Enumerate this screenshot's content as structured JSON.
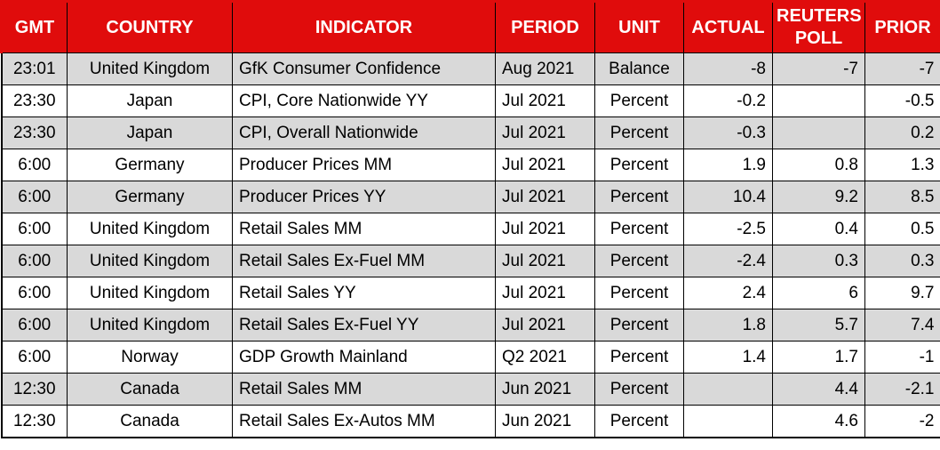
{
  "colors": {
    "header_bg": "#e00c0c",
    "header_text": "#ffffff",
    "row_alt_bg": "#d9d9d9",
    "row_bg": "#ffffff",
    "border": "#000000",
    "text": "#000000"
  },
  "table": {
    "columns": [
      {
        "key": "gmt",
        "label": "GMT"
      },
      {
        "key": "country",
        "label": "COUNTRY"
      },
      {
        "key": "indicator",
        "label": "INDICATOR"
      },
      {
        "key": "period",
        "label": "PERIOD"
      },
      {
        "key": "unit",
        "label": "UNIT"
      },
      {
        "key": "actual",
        "label": "ACTUAL"
      },
      {
        "key": "reuters_poll",
        "label": "REUTERS POLL"
      },
      {
        "key": "prior",
        "label": "PRIOR"
      }
    ],
    "rows": [
      {
        "gmt": "23:01",
        "country": "United Kingdom",
        "indicator": "GfK Consumer Confidence",
        "period": "Aug 2021",
        "unit": "Balance",
        "actual": "-8",
        "reuters_poll": "-7",
        "prior": "-7"
      },
      {
        "gmt": "23:30",
        "country": "Japan",
        "indicator": "CPI, Core Nationwide YY",
        "period": "Jul 2021",
        "unit": "Percent",
        "actual": "-0.2",
        "reuters_poll": "",
        "prior": "-0.5"
      },
      {
        "gmt": "23:30",
        "country": "Japan",
        "indicator": "CPI, Overall Nationwide",
        "period": "Jul 2021",
        "unit": "Percent",
        "actual": "-0.3",
        "reuters_poll": "",
        "prior": "0.2"
      },
      {
        "gmt": "6:00",
        "country": "Germany",
        "indicator": "Producer Prices MM",
        "period": "Jul 2021",
        "unit": "Percent",
        "actual": "1.9",
        "reuters_poll": "0.8",
        "prior": "1.3"
      },
      {
        "gmt": "6:00",
        "country": "Germany",
        "indicator": "Producer Prices YY",
        "period": "Jul 2021",
        "unit": "Percent",
        "actual": "10.4",
        "reuters_poll": "9.2",
        "prior": "8.5"
      },
      {
        "gmt": "6:00",
        "country": "United Kingdom",
        "indicator": "Retail Sales MM",
        "period": "Jul 2021",
        "unit": "Percent",
        "actual": "-2.5",
        "reuters_poll": "0.4",
        "prior": "0.5"
      },
      {
        "gmt": "6:00",
        "country": "United Kingdom",
        "indicator": "Retail Sales Ex-Fuel MM",
        "period": "Jul 2021",
        "unit": "Percent",
        "actual": "-2.4",
        "reuters_poll": "0.3",
        "prior": "0.3"
      },
      {
        "gmt": "6:00",
        "country": "United Kingdom",
        "indicator": "Retail Sales YY",
        "period": "Jul 2021",
        "unit": "Percent",
        "actual": "2.4",
        "reuters_poll": "6",
        "prior": "9.7"
      },
      {
        "gmt": "6:00",
        "country": "United Kingdom",
        "indicator": "Retail Sales Ex-Fuel YY",
        "period": "Jul 2021",
        "unit": "Percent",
        "actual": "1.8",
        "reuters_poll": "5.7",
        "prior": "7.4"
      },
      {
        "gmt": "6:00",
        "country": "Norway",
        "indicator": "GDP Growth Mainland",
        "period": "Q2 2021",
        "unit": "Percent",
        "actual": "1.4",
        "reuters_poll": "1.7",
        "prior": "-1"
      },
      {
        "gmt": "12:30",
        "country": "Canada",
        "indicator": "Retail Sales MM",
        "period": "Jun 2021",
        "unit": "Percent",
        "actual": "",
        "reuters_poll": "4.4",
        "prior": "-2.1"
      },
      {
        "gmt": "12:30",
        "country": "Canada",
        "indicator": "Retail Sales Ex-Autos MM",
        "period": "Jun 2021",
        "unit": "Percent",
        "actual": "",
        "reuters_poll": "4.6",
        "prior": "-2"
      }
    ]
  }
}
